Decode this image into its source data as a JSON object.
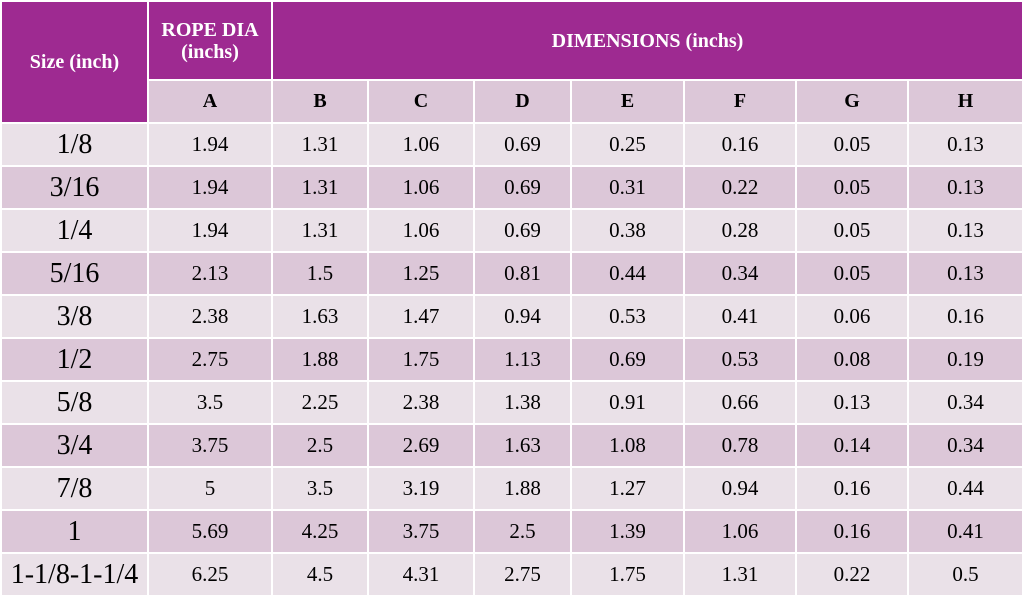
{
  "header": {
    "size_label": "Size (inch)",
    "rope_label": "ROPE DIA (inchs)",
    "dimensions_label": "DIMENSIONS (inchs)",
    "columns": [
      "A",
      "B",
      "C",
      "D",
      "E",
      "F",
      "G",
      "H"
    ]
  },
  "colors": {
    "header_bg": "#9e2a91",
    "row_light": "#eae1e8",
    "row_dark": "#dcc7d8"
  },
  "rows": [
    {
      "size": "1/8",
      "values": [
        "1.94",
        "1.31",
        "1.06",
        "0.69",
        "0.25",
        "0.16",
        "0.05",
        "0.13"
      ]
    },
    {
      "size": "3/16",
      "values": [
        "1.94",
        "1.31",
        "1.06",
        "0.69",
        "0.31",
        "0.22",
        "0.05",
        "0.13"
      ]
    },
    {
      "size": "1/4",
      "values": [
        "1.94",
        "1.31",
        "1.06",
        "0.69",
        "0.38",
        "0.28",
        "0.05",
        "0.13"
      ]
    },
    {
      "size": "5/16",
      "values": [
        "2.13",
        "1.5",
        "1.25",
        "0.81",
        "0.44",
        "0.34",
        "0.05",
        "0.13"
      ]
    },
    {
      "size": "3/8",
      "values": [
        "2.38",
        "1.63",
        "1.47",
        "0.94",
        "0.53",
        "0.41",
        "0.06",
        "0.16"
      ]
    },
    {
      "size": "1/2",
      "values": [
        "2.75",
        "1.88",
        "1.75",
        "1.13",
        "0.69",
        "0.53",
        "0.08",
        "0.19"
      ]
    },
    {
      "size": "5/8",
      "values": [
        "3.5",
        "2.25",
        "2.38",
        "1.38",
        "0.91",
        "0.66",
        "0.13",
        "0.34"
      ]
    },
    {
      "size": "3/4",
      "values": [
        "3.75",
        "2.5",
        "2.69",
        "1.63",
        "1.08",
        "0.78",
        "0.14",
        "0.34"
      ]
    },
    {
      "size": "7/8",
      "values": [
        "5",
        "3.5",
        "3.19",
        "1.88",
        "1.27",
        "0.94",
        "0.16",
        "0.44"
      ]
    },
    {
      "size": "1",
      "values": [
        "5.69",
        "4.25",
        "3.75",
        "2.5",
        "1.39",
        "1.06",
        "0.16",
        "0.41"
      ]
    },
    {
      "size": "1-1/8-1-1/4",
      "values": [
        "6.25",
        "4.5",
        "4.31",
        "2.75",
        "1.75",
        "1.31",
        "0.22",
        "0.5"
      ]
    }
  ]
}
